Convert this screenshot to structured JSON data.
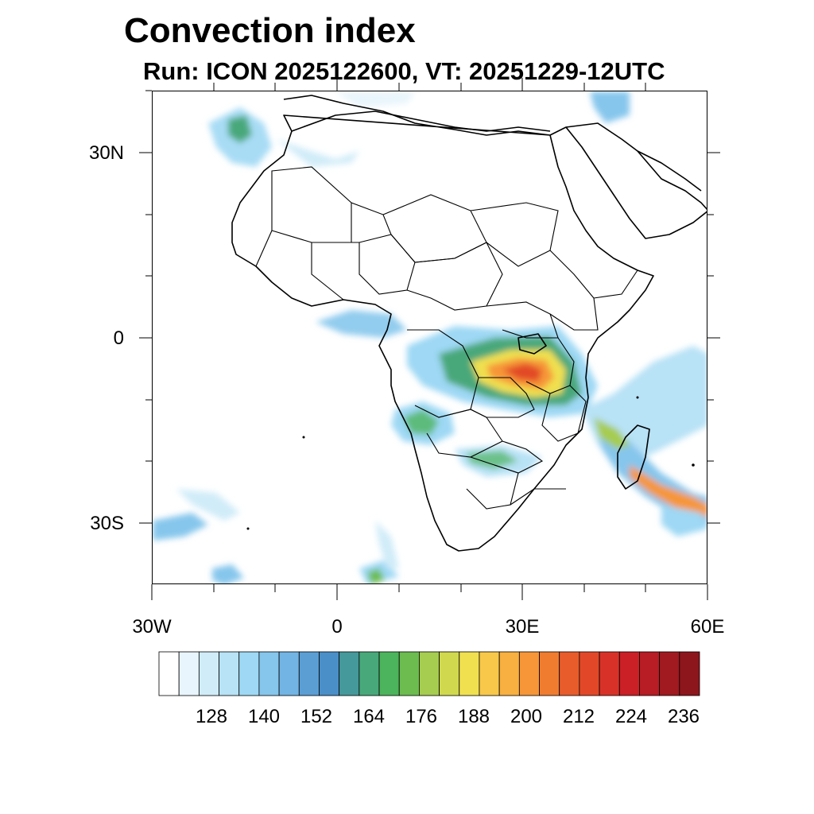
{
  "title": "Convection index",
  "subtitle": "Run: ICON 2025122600,  VT: 20251229-12UTC",
  "axes": {
    "lat_labels": [
      "30N",
      "0",
      "30S"
    ],
    "lon_labels": [
      "30W",
      "0",
      "30E",
      "60E"
    ]
  },
  "colorbar": {
    "colors": [
      "#ffffff",
      "#e8f5fc",
      "#d0ecf8",
      "#b8e2f6",
      "#9ed8f4",
      "#86c6ec",
      "#72b4e4",
      "#5b9ed4",
      "#4a8fc8",
      "#46999a",
      "#48a87a",
      "#4cb45c",
      "#6cbc50",
      "#a6cc50",
      "#d0d84e",
      "#f0e050",
      "#f8c84a",
      "#f8b040",
      "#f69638",
      "#f07c30",
      "#e85c2c",
      "#e24828",
      "#d83228",
      "#ca2026",
      "#b81c24",
      "#a01a20",
      "#8c161c"
    ],
    "labels": [
      "128",
      "140",
      "152",
      "164",
      "176",
      "188",
      "200",
      "212",
      "224",
      "236"
    ]
  }
}
